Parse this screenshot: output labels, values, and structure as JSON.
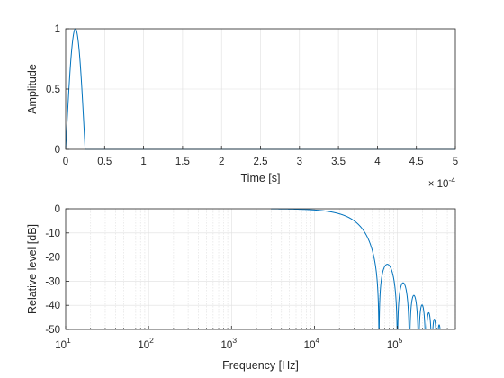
{
  "chart_data": [
    {
      "type": "line",
      "xlabel": "Time [s]",
      "ylabel": "Amplitude",
      "x_multiplier_label": "× 10",
      "x_multiplier_exp": "-4",
      "xlim": [
        0,
        5
      ],
      "ylim": [
        0,
        1
      ],
      "xticks": [
        0,
        0.5,
        1,
        1.5,
        2,
        2.5,
        3,
        3.5,
        4,
        4.5,
        5
      ],
      "xtick_labels": [
        "0",
        "0.5",
        "1",
        "1.5",
        "2",
        "2.5",
        "3",
        "3.5",
        "4",
        "4.5",
        "5"
      ],
      "yticks": [
        0,
        0.5,
        1
      ],
      "ytick_labels": [
        "0",
        "0.5",
        "1"
      ],
      "grid": true,
      "series_color": "#0072bd",
      "pulse": {
        "shape": "half-sine",
        "start": 0,
        "end": 0.25,
        "peak": 1
      },
      "x_end": 5
    },
    {
      "type": "line",
      "xlabel": "Frequency [Hz]",
      "ylabel": "Relative level [dB]",
      "x_scale": "log",
      "xlim": [
        10,
        500000
      ],
      "ylim": [
        -50,
        0
      ],
      "xtick_values": [
        10,
        100,
        1000,
        10000,
        100000
      ],
      "xtick_base": "10",
      "xtick_exps": [
        "1",
        "2",
        "3",
        "4",
        "5"
      ],
      "yticks": [
        0,
        -10,
        -20,
        -30,
        -40,
        -50
      ],
      "ytick_labels": [
        "0",
        "-10",
        "-20",
        "-30",
        "-40",
        "-50"
      ],
      "grid": true,
      "minor_grid": true,
      "series_color": "#0072bd",
      "x_start": 3000,
      "x_end": 500000,
      "pulse_duration": 2.5e-05
    }
  ]
}
